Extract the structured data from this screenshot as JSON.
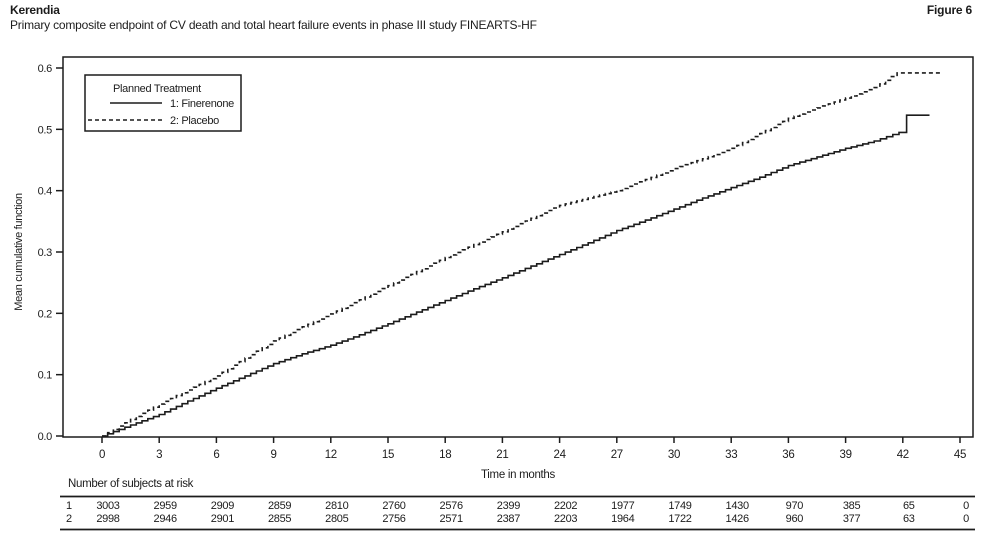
{
  "header": {
    "title": "Kerendia",
    "subtitle": "Primary composite endpoint of CV death and total heart failure events in phase III study FINEARTS-HF",
    "figure_label": "Figure 6"
  },
  "colors": {
    "ink": "#1c1c1c",
    "background": "#ffffff"
  },
  "chart_data": {
    "type": "line",
    "subtype": "mean-cumulative-function-step-curves",
    "title": "Primary composite endpoint of CV death and total heart failure events in phase III study FINEARTS-HF",
    "xlabel": "Time in months",
    "ylabel": "Mean cumulative function",
    "xlim": [
      0,
      45
    ],
    "ylim": [
      0.0,
      0.6
    ],
    "x_ticks": [
      0,
      3,
      6,
      9,
      12,
      15,
      18,
      21,
      24,
      27,
      30,
      33,
      36,
      39,
      42,
      45
    ],
    "y_ticks": [
      0.0,
      0.1,
      0.2,
      0.3,
      0.4,
      0.5,
      0.6
    ],
    "grid": false,
    "legend": {
      "title": "Planned Treatment",
      "position": "top-left",
      "entries": [
        {
          "label": "1: Finerenone",
          "style": "solid"
        },
        {
          "label": "2: Placebo",
          "style": "dashed"
        }
      ]
    },
    "series": [
      {
        "name": "1: Finerenone",
        "style": "solid",
        "x": [
          0,
          1.5,
          3,
          4.5,
          6,
          7.5,
          9,
          10.5,
          12,
          13.5,
          15,
          16.5,
          18,
          19.5,
          21,
          22.5,
          24,
          25.5,
          27,
          28.5,
          30,
          31.5,
          33,
          34.5,
          36,
          37.5,
          39,
          40.5,
          41.8,
          42.2,
          43.4
        ],
        "y": [
          0.0,
          0.018,
          0.035,
          0.057,
          0.078,
          0.098,
          0.118,
          0.134,
          0.148,
          0.165,
          0.183,
          0.202,
          0.221,
          0.24,
          0.258,
          0.277,
          0.296,
          0.315,
          0.335,
          0.352,
          0.37,
          0.388,
          0.405,
          0.422,
          0.441,
          0.455,
          0.469,
          0.481,
          0.495,
          0.523,
          0.523
        ]
      },
      {
        "name": "2: Placebo",
        "style": "dashed",
        "x": [
          0,
          1.5,
          3,
          4.5,
          6,
          7.5,
          9,
          10.5,
          12,
          13.5,
          15,
          16.5,
          18,
          19.5,
          21,
          22.5,
          24,
          25.5,
          27,
          28.5,
          30,
          31.5,
          33,
          34.5,
          36,
          37.5,
          39,
          40.5,
          41.7,
          44.1
        ],
        "y": [
          0.0,
          0.027,
          0.052,
          0.075,
          0.098,
          0.127,
          0.155,
          0.178,
          0.199,
          0.222,
          0.245,
          0.268,
          0.291,
          0.312,
          0.333,
          0.355,
          0.376,
          0.388,
          0.4,
          0.418,
          0.436,
          0.452,
          0.469,
          0.493,
          0.518,
          0.535,
          0.551,
          0.568,
          0.592,
          0.592
        ]
      }
    ],
    "risk_table": {
      "label": "Number of subjects at risk",
      "months": [
        0,
        3,
        6,
        9,
        12,
        15,
        18,
        21,
        24,
        27,
        30,
        33,
        36,
        39,
        42,
        45
      ],
      "rows": [
        {
          "id": "1",
          "values": [
            3003,
            2959,
            2909,
            2859,
            2810,
            2760,
            2576,
            2399,
            2202,
            1977,
            1749,
            1430,
            970,
            385,
            65,
            0
          ]
        },
        {
          "id": "2",
          "values": [
            2998,
            2946,
            2901,
            2855,
            2805,
            2756,
            2571,
            2387,
            2203,
            1964,
            1722,
            1426,
            960,
            377,
            63,
            0
          ]
        }
      ]
    }
  }
}
